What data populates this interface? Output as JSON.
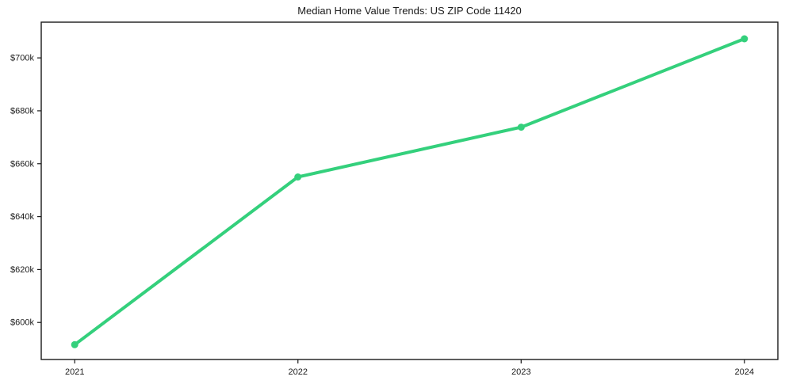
{
  "chart_data": {
    "type": "line",
    "title": "Median Home Value Trends: US ZIP Code 11420",
    "categories": [
      "2021",
      "2022",
      "2023",
      "2024"
    ],
    "x_numeric": [
      2021,
      2022,
      2023,
      2024
    ],
    "series": [
      {
        "values": [
          591600,
          655000,
          673800,
          707200
        ],
        "color": "#34d07c",
        "marker": "circle",
        "line_width": 4,
        "marker_radius": 4.5
      }
    ],
    "xlabel": "",
    "ylabel": "",
    "xlim": [
      2020.85,
      2024.15
    ],
    "ylim": [
      586000,
      713500
    ],
    "y_ticks": [
      {
        "value": 600000,
        "label": "$600k"
      },
      {
        "value": 620000,
        "label": "$620k"
      },
      {
        "value": 640000,
        "label": "$640k"
      },
      {
        "value": 660000,
        "label": "$660k"
      },
      {
        "value": 680000,
        "label": "$680k"
      },
      {
        "value": 700000,
        "label": "$700k"
      }
    ],
    "grid": false,
    "legend": null,
    "axis_color": "#1a1a1a",
    "text_color": "#1a1a1a",
    "background_color": "#ffffff"
  }
}
